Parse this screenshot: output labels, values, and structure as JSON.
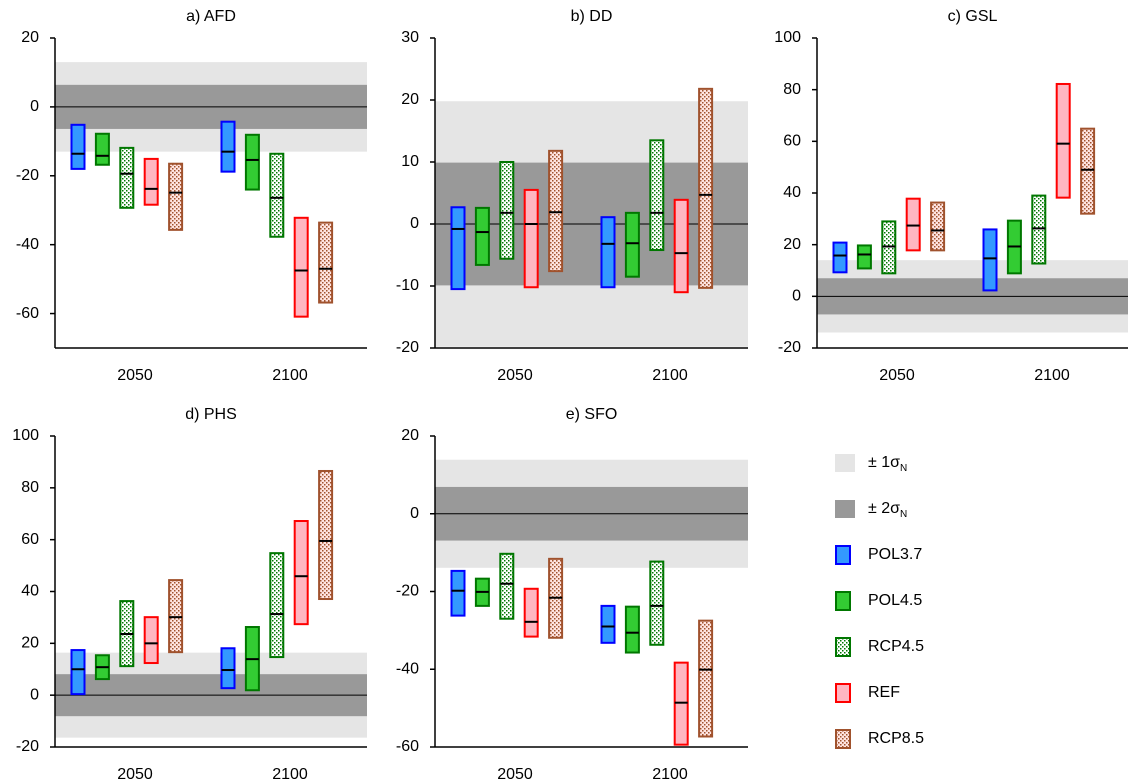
{
  "chart_data": [
    {
      "type": "range",
      "title": "a) AFD",
      "categories": [
        "2050",
        "2100"
      ],
      "ylim": [
        -70,
        20
      ],
      "yticks": [
        -60,
        -40,
        -20,
        0,
        20
      ],
      "bands": [
        13,
        6.4
      ],
      "series": [
        {
          "low": [
            -18,
            -18.8
          ],
          "median": [
            -13.6,
            -13
          ],
          "high": [
            -5.2,
            -4.3
          ]
        },
        {
          "low": [
            -16.8,
            -24
          ],
          "median": [
            -14.2,
            -15.4
          ],
          "high": [
            -7.8,
            -8.1
          ]
        },
        {
          "low": [
            -29.3,
            -37.7
          ],
          "median": [
            -19.4,
            -26.4
          ],
          "high": [
            -11.9,
            -13.6
          ]
        },
        {
          "low": [
            -28.4,
            -60.9
          ],
          "median": [
            -23.8,
            -47.5
          ],
          "high": [
            -15.1,
            -32.2
          ]
        },
        {
          "low": [
            -35.7,
            -56.8
          ],
          "median": [
            -24.9,
            -47
          ],
          "high": [
            -16.5,
            -33.6
          ]
        }
      ]
    },
    {
      "type": "range",
      "title": "b) DD",
      "categories": [
        "2050",
        "2100"
      ],
      "ylim": [
        -20,
        30
      ],
      "yticks": [
        -20,
        -10,
        0,
        10,
        20,
        30
      ],
      "bands": [
        19.8,
        9.9
      ],
      "series": [
        {
          "low": [
            -10.5,
            -10.2
          ],
          "median": [
            -0.8,
            -3.2
          ],
          "high": [
            2.7,
            1.1
          ]
        },
        {
          "low": [
            -6.6,
            -8.5
          ],
          "median": [
            -1.3,
            -3.1
          ],
          "high": [
            2.6,
            1.8
          ]
        },
        {
          "low": [
            -5.6,
            -4.2
          ],
          "median": [
            1.8,
            1.8
          ],
          "high": [
            10,
            13.5
          ]
        },
        {
          "low": [
            -10.2,
            -11
          ],
          "median": [
            0,
            -4.7
          ],
          "high": [
            5.5,
            3.9
          ]
        },
        {
          "low": [
            -7.6,
            -10.3
          ],
          "median": [
            1.9,
            4.7
          ],
          "high": [
            11.8,
            21.8
          ]
        }
      ]
    },
    {
      "type": "range",
      "title": "c) GSL",
      "categories": [
        "2050",
        "2100"
      ],
      "ylim": [
        -20,
        100
      ],
      "yticks": [
        -20,
        0,
        20,
        40,
        60,
        80,
        100
      ],
      "bands": [
        14,
        7
      ],
      "series": [
        {
          "low": [
            9.3,
            2.3
          ],
          "median": [
            15.8,
            14.7
          ],
          "high": [
            20.8,
            25.9
          ]
        },
        {
          "low": [
            10.8,
            8.9
          ],
          "median": [
            16.2,
            19.3
          ],
          "high": [
            19.7,
            29.3
          ]
        },
        {
          "low": [
            8.9,
            12.7
          ],
          "median": [
            19.3,
            26.3
          ],
          "high": [
            29,
            39
          ]
        },
        {
          "low": [
            17.8,
            38.2
          ],
          "median": [
            27.4,
            59.1
          ],
          "high": [
            37.8,
            82.2
          ]
        },
        {
          "low": [
            17.8,
            32
          ],
          "median": [
            25.5,
            49
          ],
          "high": [
            36.3,
            64.9
          ]
        }
      ]
    },
    {
      "type": "range",
      "title": "d) PHS",
      "categories": [
        "2050",
        "2100"
      ],
      "ylim": [
        -20,
        100
      ],
      "yticks": [
        -20,
        0,
        20,
        40,
        60,
        80,
        100
      ],
      "bands": [
        16.4,
        8.1
      ],
      "series": [
        {
          "low": [
            0.4,
            2.7
          ],
          "median": [
            10,
            9.7
          ],
          "high": [
            17.4,
            18.1
          ]
        },
        {
          "low": [
            6.2,
            1.9
          ],
          "median": [
            10.8,
            13.9
          ],
          "high": [
            15.4,
            26.3
          ]
        },
        {
          "low": [
            11.2,
            14.7
          ],
          "median": [
            23.6,
            31.3
          ],
          "high": [
            36.3,
            54.8
          ]
        },
        {
          "low": [
            12.4,
            27.4
          ],
          "median": [
            20,
            45.9
          ],
          "high": [
            30.1,
            67.2
          ]
        },
        {
          "low": [
            16.6,
            37.1
          ],
          "median": [
            30.1,
            59.5
          ],
          "high": [
            44.4,
            86.5
          ]
        }
      ]
    },
    {
      "type": "range",
      "title": "e) SFO",
      "categories": [
        "2050",
        "2100"
      ],
      "ylim": [
        -60,
        20
      ],
      "yticks": [
        -60,
        -40,
        -20,
        0,
        20
      ],
      "bands": [
        13.9,
        6.9
      ],
      "series": [
        {
          "low": [
            -26.2,
            -33.2
          ],
          "median": [
            -19.8,
            -29
          ],
          "high": [
            -14.7,
            -23.7
          ]
        },
        {
          "low": [
            -23.7,
            -35.7
          ],
          "median": [
            -20.1,
            -30.6
          ],
          "high": [
            -16.7,
            -23.9
          ]
        },
        {
          "low": [
            -27,
            -33.7
          ],
          "median": [
            -18,
            -23.7
          ],
          "high": [
            -10.3,
            -12.3
          ]
        },
        {
          "low": [
            -31.6,
            -59.4
          ],
          "median": [
            -27.8,
            -48.6
          ],
          "high": [
            -19.3,
            -38.3
          ]
        },
        {
          "low": [
            -31.9,
            -57.3
          ],
          "median": [
            -21.6,
            -40.1
          ],
          "high": [
            -11.6,
            -27.5
          ]
        }
      ]
    }
  ],
  "legend": {
    "bands": [
      {
        "name": "± 1σ",
        "sub": "N",
        "color": "#e5e5e5"
      },
      {
        "name": "± 2σ",
        "sub": "N",
        "color": "#999999"
      }
    ],
    "series": [
      {
        "name": "POL3.7",
        "fill": "#3399ff",
        "edge": "#0000ff",
        "pattern": false
      },
      {
        "name": "POL4.5",
        "fill": "#33cc33",
        "edge": "#007700",
        "pattern": false
      },
      {
        "name": "RCP4.5",
        "fill": "#ffffff",
        "edge": "#007700",
        "pattern": true
      },
      {
        "name": "REF",
        "fill": "#ffb6c1",
        "edge": "#ff0000",
        "pattern": false
      },
      {
        "name": "RCP8.5",
        "fill": "#ffe4e1",
        "edge": "#a0522d",
        "pattern": true
      }
    ]
  }
}
